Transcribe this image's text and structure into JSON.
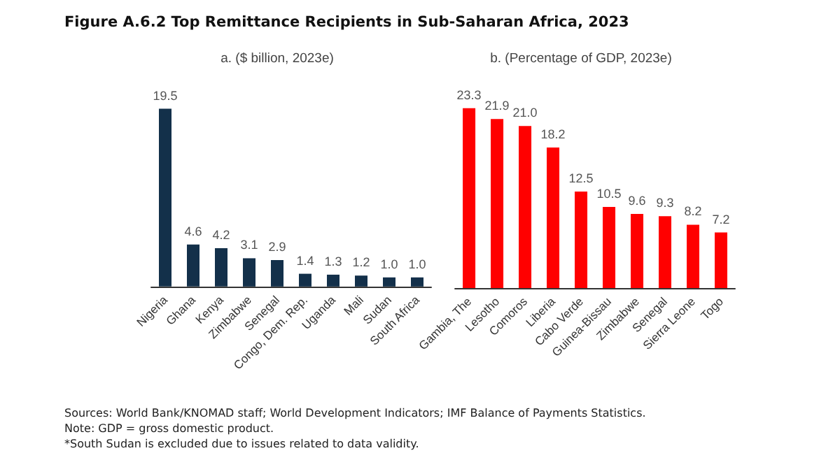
{
  "chart_data": [
    {
      "type": "bar",
      "title": "Figure A.6.2 Top Remittance Recipients in Sub-Saharan Africa, 2023",
      "subtitle": "a. ($ billion, 2023e)",
      "categories": [
        "Nigeria",
        "Ghana",
        "Kenya",
        "Zimbabwe",
        "Senegal",
        "Congo, Dem. Rep.",
        "Uganda",
        "Mali",
        "Sudan",
        "South Africa"
      ],
      "values": [
        19.5,
        4.6,
        4.2,
        3.1,
        2.9,
        1.4,
        1.3,
        1.2,
        1.0,
        1.0
      ],
      "value_labels": [
        "19.5",
        "4.6",
        "4.2",
        "3.1",
        "2.9",
        "1.4",
        "1.3",
        "1.2",
        "1.0",
        "1.0"
      ],
      "color": "#13304a",
      "annotations": [
        "Sources: World Bank/KNOMAD staff; World Development Indicators; IMF Balance of Payments Statistics.",
        "Note: GDP = gross domestic product.",
        "*South Sudan is excluded due to issues related to data validity."
      ]
    },
    {
      "type": "bar",
      "subtitle": "b. (Percentage of GDP, 2023e)",
      "categories": [
        "Gambia, The",
        "Lesotho",
        "Comoros",
        "Liberia",
        "Cabo Verde",
        "Guinea-Bissau",
        "Zimbabwe",
        "Senegal",
        "Sierra Leone",
        "Togo"
      ],
      "values": [
        23.3,
        21.9,
        21.0,
        18.2,
        12.5,
        10.5,
        9.6,
        9.3,
        8.2,
        7.2
      ],
      "value_labels": [
        "23.3",
        "21.9",
        "21.0",
        "18.2",
        "12.5",
        "10.5",
        "9.6",
        "9.3",
        "8.2",
        "7.2"
      ],
      "color": "#ff0000"
    }
  ]
}
